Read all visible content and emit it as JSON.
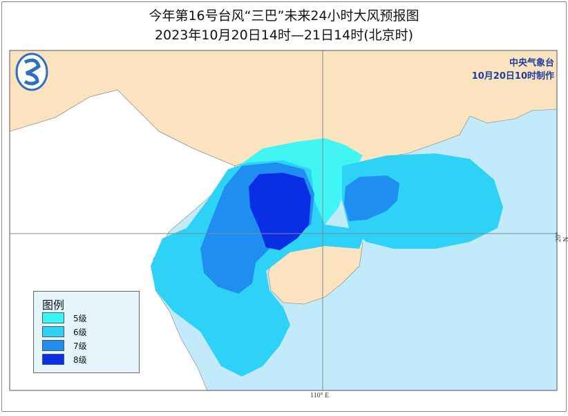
{
  "title": "今年第16号台风“三巴”未来24小时大风预报图",
  "subtitle": "2023年10月20日14时—21日14时(北京时)",
  "agency": {
    "name": "中央气象台",
    "issued": "10月20日10时制作",
    "logo_icon": "cma-logo-icon"
  },
  "legend": {
    "title": "图例",
    "items": [
      {
        "label": "5级",
        "color": "#38f6f4"
      },
      {
        "label": "6级",
        "color": "#2dd2f6"
      },
      {
        "label": "7级",
        "color": "#1f8ef0"
      },
      {
        "label": "8级",
        "color": "#0a2de6"
      }
    ]
  },
  "axes": {
    "lon_label": "110° E",
    "lat_label": "20° N"
  },
  "colors": {
    "land_china": "#fbe3bf",
    "land_other": "#ffffff",
    "sea": "#c3eafa",
    "border": "#888888"
  }
}
